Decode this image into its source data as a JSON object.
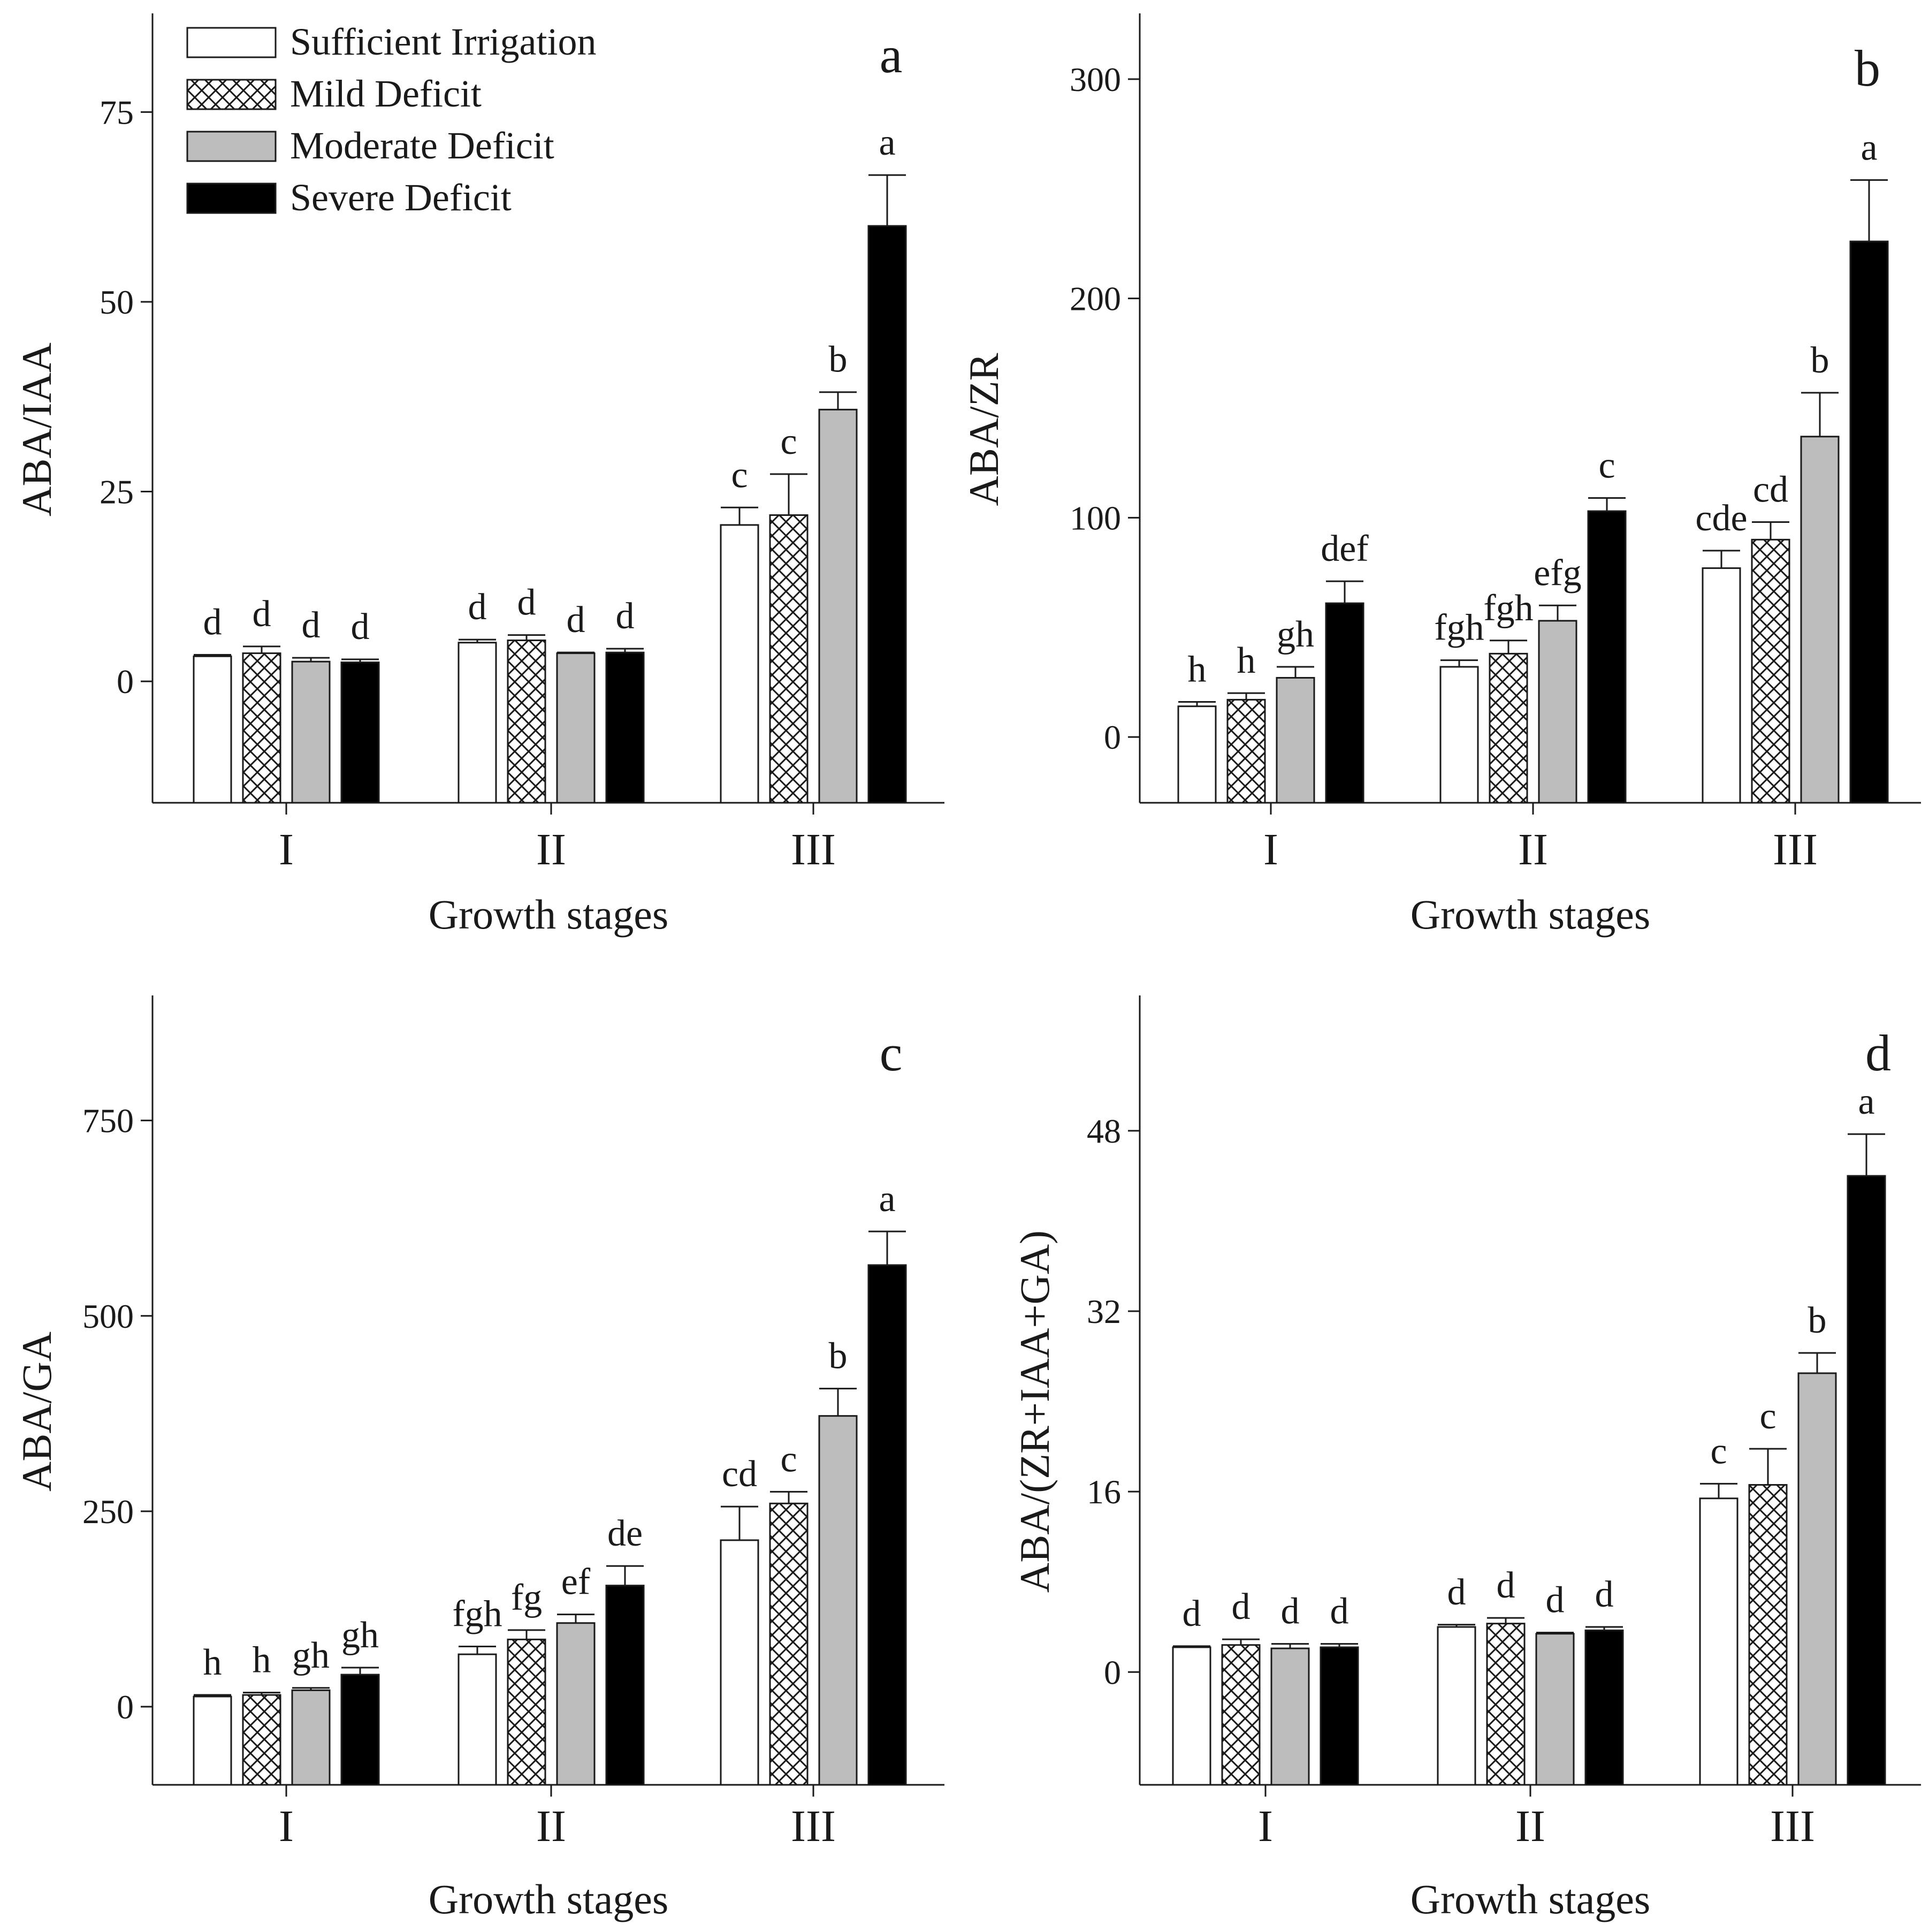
{
  "figure": {
    "legend": [
      {
        "key": "sufficient",
        "label": "Sufficient Irrigation",
        "fill": "#ffffff"
      },
      {
        "key": "mild",
        "label": "Mild Deficit",
        "fill": "hatch"
      },
      {
        "key": "moderate",
        "label": "Moderate Deficit",
        "fill": "#bdbdbd"
      },
      {
        "key": "severe",
        "label": "Severe Deficit",
        "fill": "#000000"
      }
    ],
    "colors": {
      "stroke": "#1a1a1a",
      "gray": "#bdbdbd",
      "black": "#000000",
      "white": "#ffffff"
    }
  },
  "chart_data": [
    {
      "panel": "a",
      "type": "bar",
      "ylabel": "ABA/IAA",
      "xlabel": "Growth stages",
      "categories": [
        "I",
        "II",
        "III"
      ],
      "ylim": [
        -16,
        88
      ],
      "yticks": [
        0,
        25,
        50,
        75
      ],
      "series": [
        {
          "name": "Sufficient Irrigation",
          "values": [
            3.3,
            5.1,
            20.6
          ],
          "errors": [
            0.2,
            0.4,
            2.3
          ],
          "labels": [
            "d",
            "d",
            "c"
          ]
        },
        {
          "name": "Mild Deficit",
          "values": [
            3.7,
            5.4,
            21.9
          ],
          "errors": [
            0.9,
            0.7,
            5.4
          ],
          "labels": [
            "d",
            "d",
            "c"
          ]
        },
        {
          "name": "Moderate Deficit",
          "values": [
            2.6,
            3.7,
            35.8
          ],
          "errors": [
            0.5,
            0.1,
            2.3
          ],
          "labels": [
            "d",
            "d",
            "b"
          ]
        },
        {
          "name": "Severe Deficit",
          "values": [
            2.5,
            3.8,
            60.0
          ],
          "errors": [
            0.4,
            0.5,
            6.7
          ],
          "labels": [
            "d",
            "d",
            "a"
          ]
        }
      ]
    },
    {
      "panel": "b",
      "type": "bar",
      "ylabel": "ABA/ZR",
      "xlabel": "Growth stages",
      "categories": [
        "I",
        "II",
        "III"
      ],
      "ylim": [
        -30,
        330
      ],
      "yticks": [
        0,
        100,
        200,
        300
      ],
      "series": [
        {
          "name": "Sufficient Irrigation",
          "values": [
            14,
            32,
            77
          ],
          "errors": [
            2,
            3,
            8
          ],
          "labels": [
            "h",
            "fgh",
            "cde"
          ]
        },
        {
          "name": "Mild Deficit",
          "values": [
            17,
            38,
            90
          ],
          "errors": [
            3,
            6,
            8
          ],
          "labels": [
            "h",
            "fgh",
            "cd"
          ]
        },
        {
          "name": "Moderate Deficit",
          "values": [
            27,
            53,
            137
          ],
          "errors": [
            5,
            7,
            20
          ],
          "labels": [
            "gh",
            "efg",
            "b"
          ]
        },
        {
          "name": "Severe Deficit",
          "values": [
            61,
            103,
            226
          ],
          "errors": [
            10,
            6,
            28
          ],
          "labels": [
            "def",
            "c",
            "a"
          ]
        }
      ]
    },
    {
      "panel": "c",
      "type": "bar",
      "ylabel": "ABA/GA",
      "xlabel": "Growth stages",
      "categories": [
        "I",
        "II",
        "III"
      ],
      "ylim": [
        -100,
        910
      ],
      "yticks": [
        0,
        250,
        500,
        750
      ],
      "series": [
        {
          "name": "Sufficient Irrigation",
          "values": [
            13,
            67,
            213
          ],
          "errors": [
            2,
            10,
            43
          ],
          "labels": [
            "h",
            "fgh",
            "cd"
          ]
        },
        {
          "name": "Mild Deficit",
          "values": [
            15,
            86,
            260
          ],
          "errors": [
            3,
            12,
            15
          ],
          "labels": [
            "h",
            "fg",
            "c"
          ]
        },
        {
          "name": "Moderate Deficit",
          "values": [
            21,
            107,
            372
          ],
          "errors": [
            3,
            11,
            35
          ],
          "labels": [
            "gh",
            "ef",
            "b"
          ]
        },
        {
          "name": "Severe Deficit",
          "values": [
            41,
            155,
            565
          ],
          "errors": [
            9,
            25,
            43
          ],
          "labels": [
            "gh",
            "de",
            "a"
          ]
        }
      ]
    },
    {
      "panel": "d",
      "type": "bar",
      "ylabel": "ABA/(ZR+IAA+GA)",
      "xlabel": "Growth stages",
      "categories": [
        "I",
        "II",
        "III"
      ],
      "ylim": [
        -10,
        60
      ],
      "yticks": [
        0,
        16,
        32,
        48
      ],
      "series": [
        {
          "name": "Sufficient Irrigation",
          "values": [
            2.2,
            4.0,
            15.4
          ],
          "errors": [
            0.1,
            0.2,
            1.3
          ],
          "labels": [
            "d",
            "d",
            "c"
          ]
        },
        {
          "name": "Mild Deficit",
          "values": [
            2.4,
            4.3,
            16.6
          ],
          "errors": [
            0.5,
            0.5,
            3.2
          ],
          "labels": [
            "d",
            "d",
            "c"
          ]
        },
        {
          "name": "Moderate Deficit",
          "values": [
            2.1,
            3.4,
            26.5
          ],
          "errors": [
            0.4,
            0.1,
            1.8
          ],
          "labels": [
            "d",
            "d",
            "b"
          ]
        },
        {
          "name": "Severe Deficit",
          "values": [
            2.2,
            3.7,
            44.0
          ],
          "errors": [
            0.3,
            0.3,
            3.7
          ],
          "labels": [
            "d",
            "d",
            "a"
          ]
        }
      ]
    }
  ]
}
